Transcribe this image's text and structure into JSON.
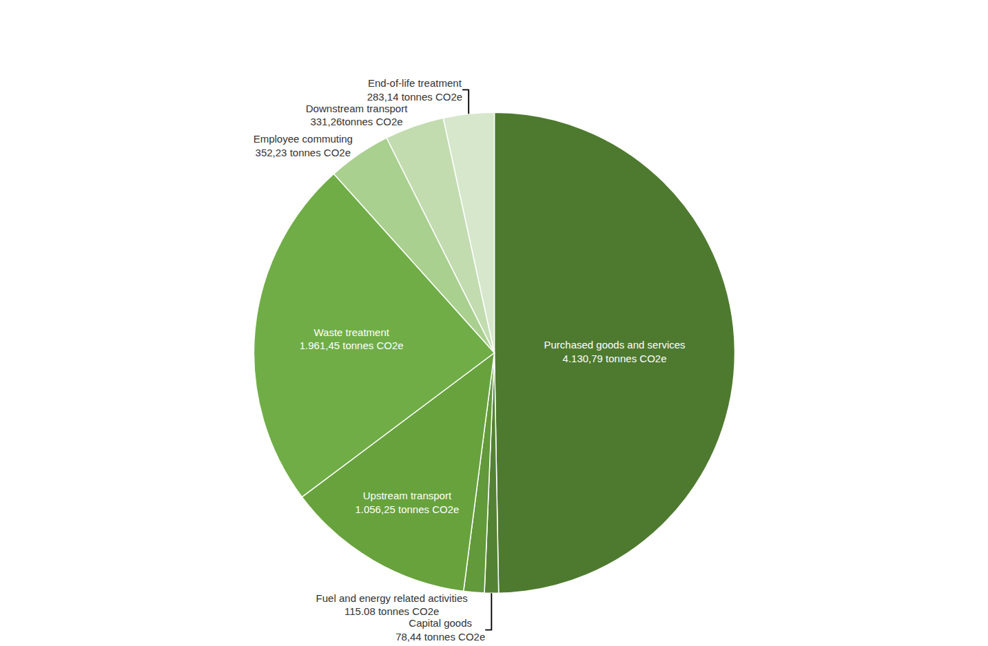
{
  "chart_data": {
    "type": "pie",
    "categories": [
      "Purchased goods and services",
      "Capital goods",
      "Fuel and energy related activities",
      "Upstream transport",
      "Waste treatment",
      "Employee commuting",
      "Downstream transport",
      "End-of-life treatment"
    ],
    "values": [
      4130.79,
      78.44,
      115.08,
      1056.25,
      1961.45,
      352.23,
      331.26,
      283.14
    ],
    "value_labels": [
      "4.130,79 tonnes CO2e",
      "78,44 tonnes CO2e",
      "115.08 tonnes CO2e",
      "1.056,25 tonnes CO2e",
      "1.961,45 tonnes CO2e",
      "352,23 tonnes CO2e",
      "331,26tonnes CO2e",
      "283,14 tonnes CO2e"
    ],
    "colors": [
      "#4e7a2f",
      "#548235",
      "#62993a",
      "#68a23d",
      "#70ad47",
      "#a9d08e",
      "#c2dcb0",
      "#d6e7cb"
    ],
    "data_labels": true
  }
}
